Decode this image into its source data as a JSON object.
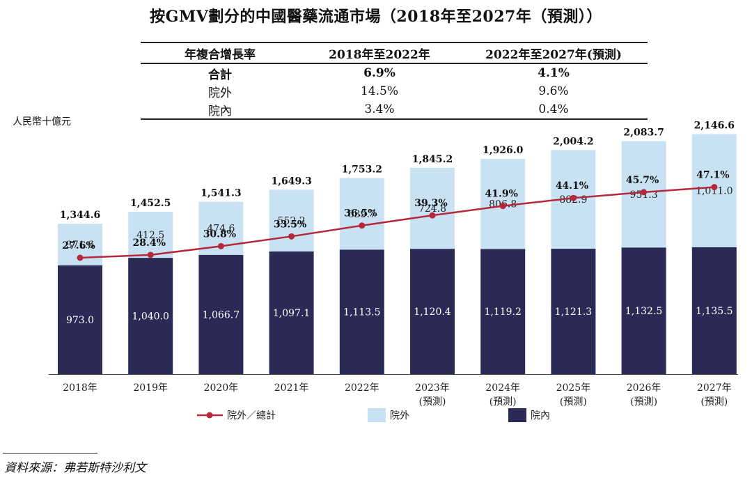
{
  "title": "按GMV劃分的中國醫藥流通市場（2018年至2027年（預測））",
  "cagr_table": {
    "headers": [
      "年複合增長率",
      "2018年至2022年",
      "2022年至2027年(預測)"
    ],
    "rows": [
      {
        "label": "合計",
        "a": "6.9%",
        "b": "4.1%",
        "bold": true
      },
      {
        "label": "院外",
        "a": "14.5%",
        "b": "9.6%",
        "bold": false
      },
      {
        "label": "院內",
        "a": "3.4%",
        "b": "0.4%",
        "bold": false
      }
    ]
  },
  "unit": "人民幣十億元",
  "source": "資料來源：弗若斯特沙利文",
  "chart_data": {
    "type": "bar",
    "stacked": true,
    "categories": [
      "2018年",
      "2019年",
      "2020年",
      "2021年",
      "2022年",
      "2023年",
      "2024年",
      "2025年",
      "2026年",
      "2027年"
    ],
    "category_sublabels": [
      "",
      "",
      "",
      "",
      "",
      "(預測)",
      "(預測)",
      "(預測)",
      "(預測)",
      "(預測)"
    ],
    "series": [
      {
        "name": "院內",
        "color": "#2b2a57",
        "values": [
          973.0,
          1040.0,
          1066.7,
          1097.1,
          1113.5,
          1120.4,
          1119.2,
          1121.3,
          1132.5,
          1135.5
        ],
        "labels": [
          "973.0",
          "1,040.0",
          "1,066.7",
          "1,097.1",
          "1,113.5",
          "1,120.4",
          "1,119.2",
          "1,121.3",
          "1,132.5",
          "1,135.5"
        ]
      },
      {
        "name": "院外",
        "color": "#c9e2f3",
        "values": [
          371.6,
          412.5,
          474.6,
          552.2,
          639.7,
          724.8,
          806.8,
          882.9,
          951.3,
          1011.0
        ],
        "labels": [
          "371.6",
          "412.5",
          "474.6",
          "552.2",
          "639.7",
          "724.8",
          "806.8",
          "882.9",
          "951.3",
          "1,011.0"
        ]
      }
    ],
    "totals": [
      1344.6,
      1452.5,
      1541.3,
      1649.3,
      1753.2,
      1845.2,
      1926.0,
      2004.2,
      2083.7,
      2146.6
    ],
    "total_labels": [
      "1,344.6",
      "1,452.5",
      "1,541.3",
      "1,649.3",
      "1,753.2",
      "1,845.2",
      "1,926.0",
      "2,004.2",
      "2,083.7",
      "2,146.6"
    ],
    "line": {
      "name": "院外／總計",
      "color": "#b5283a",
      "values": [
        27.6,
        28.4,
        30.8,
        33.5,
        36.5,
        39.3,
        41.9,
        44.1,
        45.7,
        47.1
      ],
      "labels": [
        "27.6%",
        "28.4%",
        "30.8%",
        "33.5%",
        "36.5%",
        "39.3%",
        "41.9%",
        "44.1%",
        "45.7%",
        "47.1%"
      ]
    },
    "legend": [
      {
        "name": "院外／總計",
        "kind": "line",
        "color": "#b5283a"
      },
      {
        "name": "院外",
        "kind": "box",
        "color": "#c9e2f3"
      },
      {
        "name": "院內",
        "kind": "box",
        "color": "#2b2a57"
      }
    ],
    "legend_position": "bottom",
    "grid": false
  }
}
